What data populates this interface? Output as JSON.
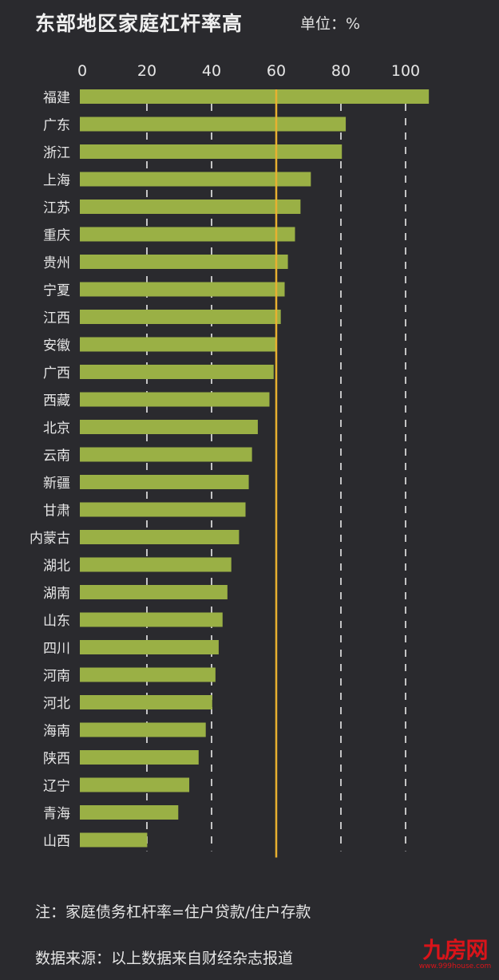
{
  "chart_data": {
    "type": "bar",
    "orientation": "horizontal",
    "title": "东部地区家庭杠杆率高",
    "unit_label": "单位：%",
    "xlabel": "",
    "ylabel": "",
    "xlim": [
      0,
      110
    ],
    "xticks": [
      0,
      20,
      40,
      60,
      80,
      100
    ],
    "grid": "dashed vertical",
    "reference_line": 60,
    "categories": [
      "福建",
      "广东",
      "浙江",
      "上海",
      "江苏",
      "重庆",
      "贵州",
      "宁夏",
      "江西",
      "安徽",
      "广西",
      "西藏",
      "北京",
      "云南",
      "新疆",
      "甘肃",
      "内蒙古",
      "湖北",
      "湖南",
      "山东",
      "四川",
      "河南",
      "河北",
      "海南",
      "陕西",
      "辽宁",
      "青海",
      "山西"
    ],
    "values": [
      107.2,
      81.5,
      80.3,
      70.7,
      67.5,
      65.8,
      63.6,
      62.6,
      61.4,
      60.1,
      59.2,
      57.9,
      54.3,
      52.5,
      51.5,
      50.5,
      48.5,
      46.1,
      44.9,
      43.4,
      42.2,
      41.2,
      40.2,
      38.2,
      36.0,
      33.1,
      29.7,
      20.1
    ],
    "colors": {
      "bar": "#9ab045",
      "reference": "#e8b030",
      "grid": "#e0e0e0",
      "background": "#2a2a2e"
    }
  },
  "note": "注：家庭债务杠杆率=住户贷款/住户存款",
  "source": "数据来源：以上数据来自财经杂志报道",
  "watermark": {
    "brand": "九房网",
    "url": "www.999house.com"
  }
}
